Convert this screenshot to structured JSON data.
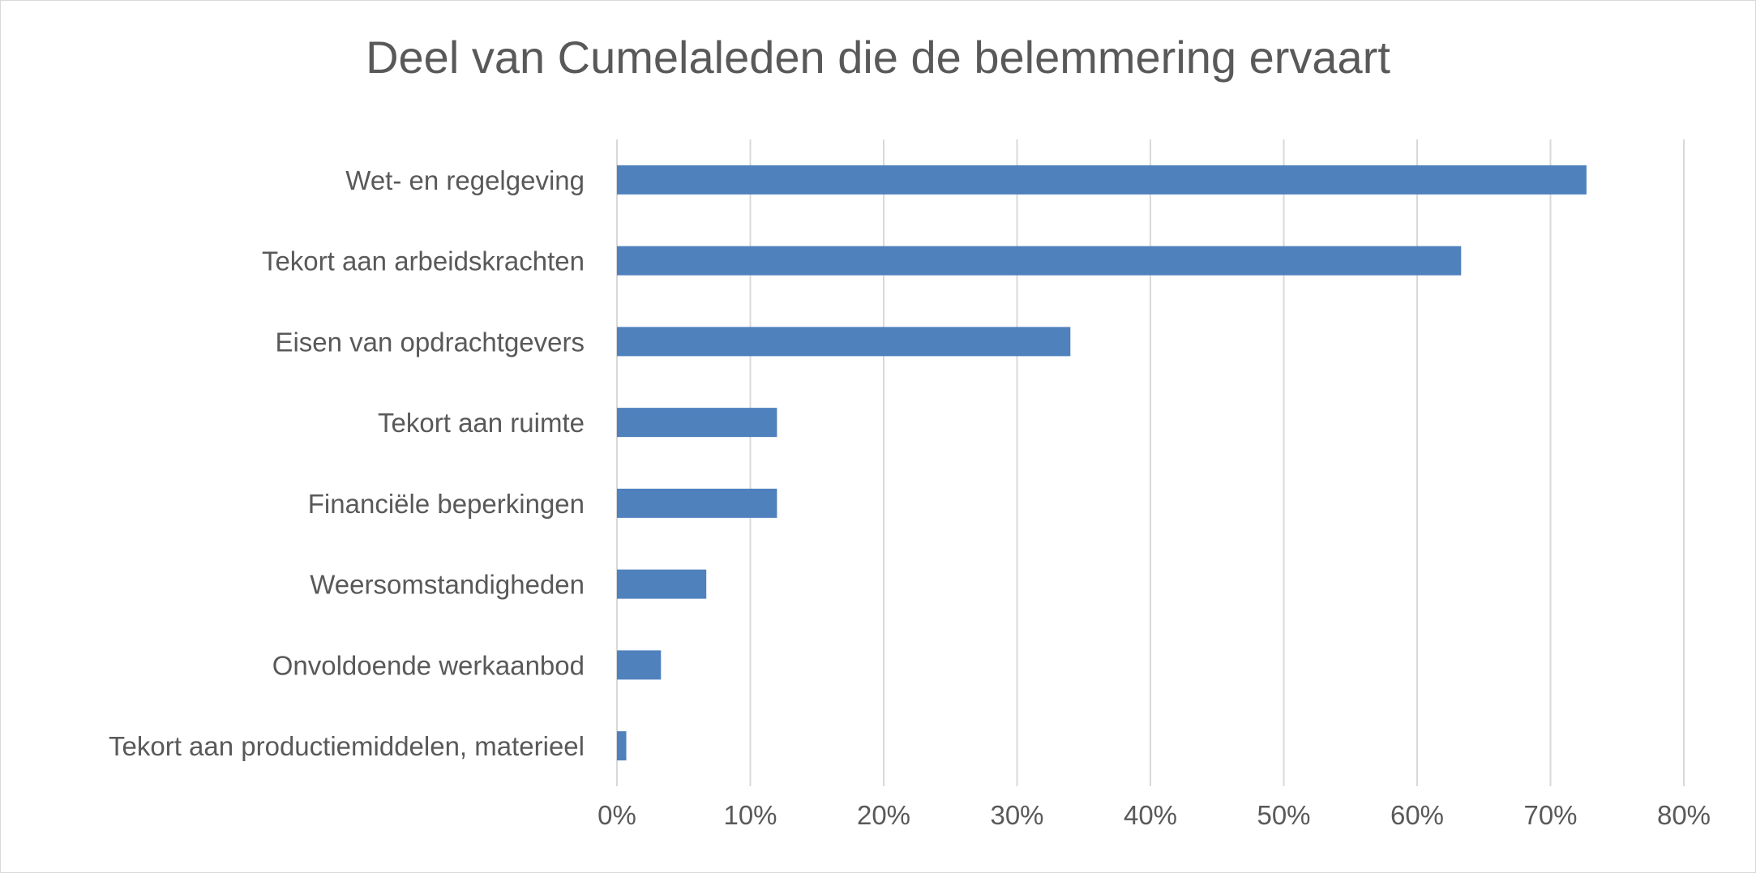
{
  "chart_data": {
    "type": "bar",
    "orientation": "horizontal",
    "title": "Deel van Cumelaleden die de belemmering ervaart",
    "categories": [
      "Wet- en regelgeving",
      "Tekort aan arbeidskrachten",
      "Eisen van opdrachtgevers",
      "Tekort aan ruimte",
      "Financiële beperkingen",
      "Weersomstandigheden",
      "Onvoldoende werkaanbod",
      "Tekort aan productiemiddelen, materieel"
    ],
    "values": [
      72.7,
      63.3,
      34.0,
      12.0,
      12.0,
      6.7,
      3.3,
      0.7
    ],
    "xlim": [
      0,
      80
    ],
    "xticks": [
      "0%",
      "10%",
      "20%",
      "30%",
      "40%",
      "50%",
      "60%",
      "70%",
      "80%"
    ],
    "xtick_values": [
      0,
      10,
      20,
      30,
      40,
      50,
      60,
      70,
      80
    ],
    "grid": true,
    "legend": "none",
    "bar_color": "#4f81bd",
    "grid_color": "#d9d9d9"
  }
}
